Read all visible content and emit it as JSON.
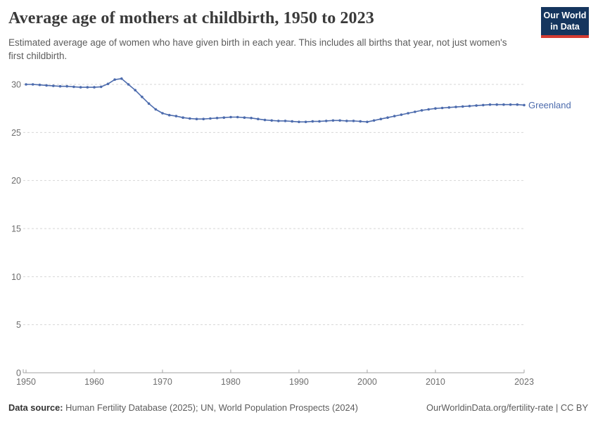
{
  "header": {
    "title": "Average age of mothers at childbirth, 1950 to 2023",
    "subtitle": "Estimated average age of women who have given birth in each year. This includes all births that year, not just women's first childbirth.",
    "logo": {
      "line1": "Our World",
      "line2": "in Data"
    }
  },
  "footer": {
    "source_label": "Data source:",
    "source_text": " Human Fertility Database (2025); UN, World Population Prospects (2024)",
    "right_text": "OurWorldinData.org/fertility-rate | CC BY"
  },
  "chart_data": {
    "type": "line",
    "title": "Average age of mothers at childbirth, 1950 to 2023",
    "entity_label": "Greenland",
    "x": [
      1950,
      1951,
      1952,
      1953,
      1954,
      1955,
      1956,
      1957,
      1958,
      1959,
      1960,
      1961,
      1962,
      1963,
      1964,
      1965,
      1966,
      1967,
      1968,
      1969,
      1970,
      1971,
      1972,
      1973,
      1974,
      1975,
      1976,
      1977,
      1978,
      1979,
      1980,
      1981,
      1982,
      1983,
      1984,
      1985,
      1986,
      1987,
      1988,
      1989,
      1990,
      1991,
      1992,
      1993,
      1994,
      1995,
      1996,
      1997,
      1998,
      1999,
      2000,
      2001,
      2002,
      2003,
      2004,
      2005,
      2006,
      2007,
      2008,
      2009,
      2010,
      2011,
      2012,
      2013,
      2014,
      2015,
      2016,
      2017,
      2018,
      2019,
      2020,
      2021,
      2022,
      2023
    ],
    "series": [
      {
        "name": "Greenland",
        "values": [
          30.0,
          30.0,
          29.95,
          29.9,
          29.85,
          29.8,
          29.8,
          29.75,
          29.7,
          29.7,
          29.7,
          29.75,
          30.05,
          30.5,
          30.6,
          30.0,
          29.4,
          28.7,
          28.0,
          27.4,
          27.0,
          26.8,
          26.7,
          26.55,
          26.45,
          26.4,
          26.4,
          26.45,
          26.5,
          26.55,
          26.6,
          26.6,
          26.55,
          26.5,
          26.4,
          26.3,
          26.25,
          26.2,
          26.2,
          26.15,
          26.1,
          26.1,
          26.15,
          26.15,
          26.2,
          26.25,
          26.25,
          26.2,
          26.2,
          26.15,
          26.1,
          26.25,
          26.4,
          26.55,
          26.7,
          26.85,
          27.0,
          27.15,
          27.3,
          27.4,
          27.5,
          27.55,
          27.6,
          27.65,
          27.7,
          27.75,
          27.8,
          27.85,
          27.9,
          27.9,
          27.9,
          27.9,
          27.9,
          27.85
        ]
      }
    ],
    "xlabel": "",
    "ylabel": "",
    "xlim": [
      1950,
      2023
    ],
    "ylim": [
      0,
      30
    ],
    "xticks": [
      1950,
      1960,
      1970,
      1980,
      1990,
      2000,
      2010,
      2023
    ],
    "yticks": [
      0,
      5,
      10,
      15,
      20,
      25,
      30
    ],
    "grid": true,
    "legend_position": "end-of-line",
    "colors": {
      "line": "#4c6bad",
      "grid": "#d6d6d6",
      "axis": "#a3a3a3",
      "tick_label": "#6e6e6e",
      "logo_bg": "#15355e",
      "logo_bar": "#d43b32"
    }
  }
}
